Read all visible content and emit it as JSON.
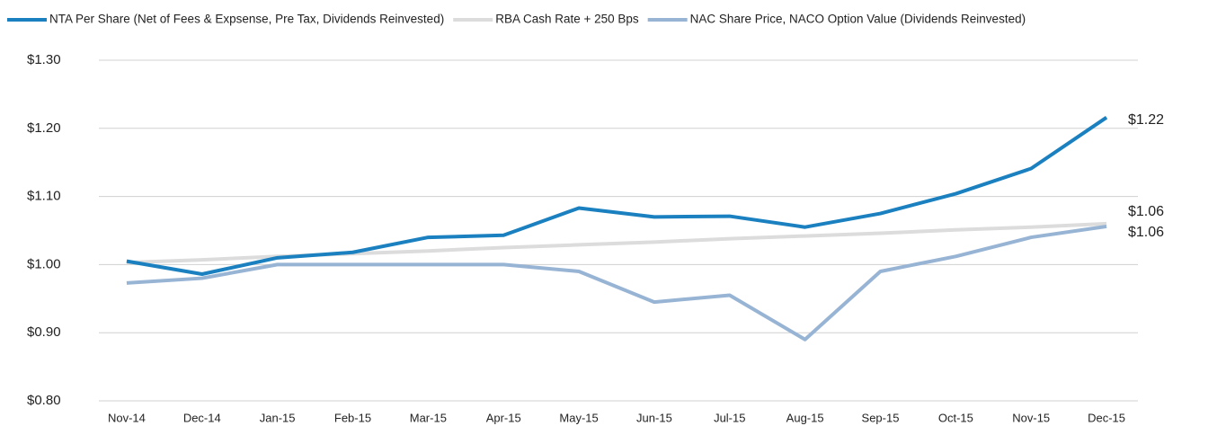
{
  "chart_data": {
    "type": "line",
    "categories": [
      "Nov-14",
      "Dec-14",
      "Jan-15",
      "Feb-15",
      "Mar-15",
      "Apr-15",
      "May-15",
      "Jun-15",
      "Jul-15",
      "Aug-15",
      "Sep-15",
      "Oct-15",
      "Nov-15",
      "Dec-15"
    ],
    "series": [
      {
        "name": "NTA Per Share (Net of Fees & Expsense, Pre Tax, Dividends Reinvested)",
        "color": "#1a80bf",
        "values": [
          1.005,
          0.986,
          1.01,
          1.018,
          1.04,
          1.043,
          1.083,
          1.07,
          1.071,
          1.055,
          1.075,
          1.104,
          1.141,
          1.216
        ],
        "value_labels": [
          null,
          null,
          null,
          null,
          null,
          null,
          null,
          null,
          null,
          null,
          null,
          null,
          null,
          "$1.22"
        ]
      },
      {
        "name": "RBA Cash Rate + 250 Bps",
        "color": "#dcdcdc",
        "values": [
          1.003,
          1.007,
          1.012,
          1.016,
          1.02,
          1.025,
          1.029,
          1.033,
          1.038,
          1.042,
          1.046,
          1.051,
          1.055,
          1.06
        ],
        "value_labels": [
          null,
          null,
          null,
          null,
          null,
          null,
          null,
          null,
          null,
          null,
          null,
          null,
          null,
          "$1.06"
        ]
      },
      {
        "name": "NAC Share Price, NACO Option Value (Dividends Reinvested)",
        "color": "#98b4d4",
        "values": [
          0.973,
          0.98,
          1.0,
          1.0,
          1.0,
          1.0,
          0.99,
          0.945,
          0.955,
          0.89,
          0.99,
          1.012,
          1.04,
          1.056
        ],
        "value_labels": [
          null,
          null,
          null,
          null,
          null,
          null,
          null,
          null,
          null,
          null,
          null,
          null,
          null,
          "$1.06"
        ]
      }
    ],
    "ylim": [
      0.8,
      1.3
    ],
    "yticks": [
      {
        "value": 0.8,
        "label": "$0.80"
      },
      {
        "value": 0.9,
        "label": "$0.90"
      },
      {
        "value": 1.0,
        "label": "$1.00"
      },
      {
        "value": 1.1,
        "label": "$1.10"
      },
      {
        "value": 1.2,
        "label": "$1.20"
      },
      {
        "value": 1.3,
        "label": "$1.30"
      }
    ],
    "grid": true,
    "legend": "top"
  }
}
